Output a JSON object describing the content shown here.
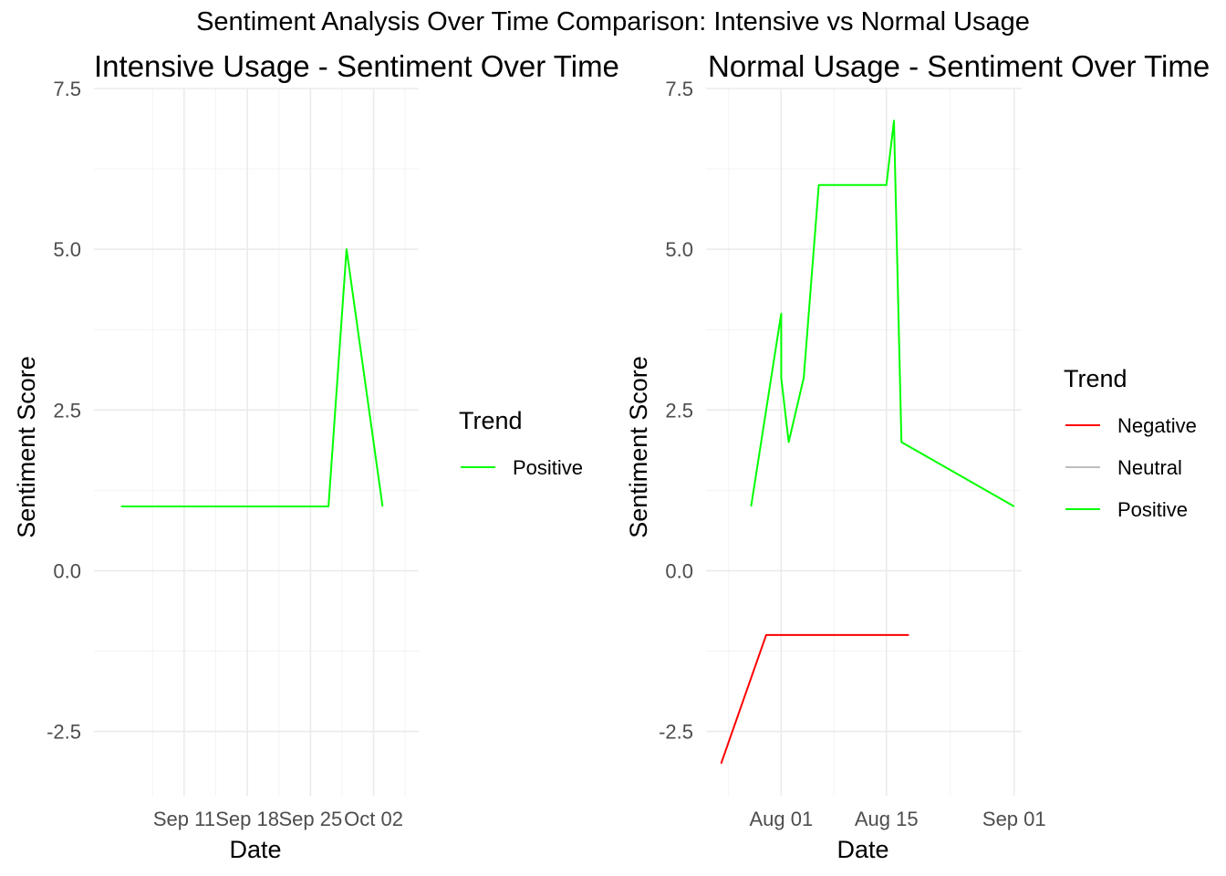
{
  "suptitle": "Sentiment Analysis Over Time Comparison: Intensive vs Normal Usage",
  "chart_data": [
    {
      "type": "line",
      "title": "Intensive Usage - Sentiment Over Time",
      "xlabel": "Date",
      "ylabel": "Sentiment Score",
      "xlim": [
        "2024-09-01",
        "2024-10-07"
      ],
      "ylim": [
        -3.5,
        7.5
      ],
      "x_ticks": [
        {
          "date": "2024-09-11",
          "label": "Sep 11"
        },
        {
          "date": "2024-09-18",
          "label": "Sep 18"
        },
        {
          "date": "2024-09-25",
          "label": "Sep 25"
        },
        {
          "date": "2024-10-02",
          "label": "Oct 02"
        }
      ],
      "y_ticks": [
        {
          "value": -2.5,
          "label": "-2.5"
        },
        {
          "value": 0,
          "label": "0.0"
        },
        {
          "value": 2.5,
          "label": "2.5"
        },
        {
          "value": 5,
          "label": "5.0"
        },
        {
          "value": 7.5,
          "label": "7.5"
        }
      ],
      "grid": true,
      "legend": {
        "title": "Trend",
        "position": "right",
        "entries": [
          {
            "name": "Positive",
            "color": "#00ff00"
          }
        ]
      },
      "series": [
        {
          "name": "Positive",
          "color": "#00ff00",
          "points": [
            {
              "x": "2024-09-04",
              "y": 1
            },
            {
              "x": "2024-09-27",
              "y": 1
            },
            {
              "x": "2024-09-29",
              "y": 5
            },
            {
              "x": "2024-10-03",
              "y": 1
            }
          ]
        }
      ]
    },
    {
      "type": "line",
      "title": "Normal Usage - Sentiment Over Time",
      "xlabel": "Date",
      "ylabel": "Sentiment Score",
      "xlim": [
        "2024-07-22",
        "2024-09-02"
      ],
      "ylim": [
        -3.5,
        7.5
      ],
      "x_ticks": [
        {
          "date": "2024-08-01",
          "label": "Aug 01"
        },
        {
          "date": "2024-08-15",
          "label": "Aug 15"
        },
        {
          "date": "2024-09-01",
          "label": "Sep 01"
        }
      ],
      "y_ticks": [
        {
          "value": -2.5,
          "label": "-2.5"
        },
        {
          "value": 0,
          "label": "0.0"
        },
        {
          "value": 2.5,
          "label": "2.5"
        },
        {
          "value": 5,
          "label": "5.0"
        },
        {
          "value": 7.5,
          "label": "7.5"
        }
      ],
      "grid": true,
      "legend": {
        "title": "Trend",
        "position": "right",
        "entries": [
          {
            "name": "Negative",
            "color": "#ff0000"
          },
          {
            "name": "Neutral",
            "color": "#bebebe"
          },
          {
            "name": "Positive",
            "color": "#00ff00"
          }
        ]
      },
      "series": [
        {
          "name": "Negative",
          "color": "#ff0000",
          "points": [
            {
              "x": "2024-07-24",
              "y": -3
            },
            {
              "x": "2024-07-30",
              "y": -1
            },
            {
              "x": "2024-08-18",
              "y": -1
            }
          ]
        },
        {
          "name": "Positive",
          "color": "#00ff00",
          "points": [
            {
              "x": "2024-07-28",
              "y": 1
            },
            {
              "x": "2024-08-01",
              "y": 4
            },
            {
              "x": "2024-08-01",
              "y": 3
            },
            {
              "x": "2024-08-02",
              "y": 2
            },
            {
              "x": "2024-08-04",
              "y": 3
            },
            {
              "x": "2024-08-06",
              "y": 6
            },
            {
              "x": "2024-08-15",
              "y": 6
            },
            {
              "x": "2024-08-16",
              "y": 7
            },
            {
              "x": "2024-08-17",
              "y": 2
            },
            {
              "x": "2024-09-01",
              "y": 1
            }
          ]
        }
      ]
    }
  ]
}
